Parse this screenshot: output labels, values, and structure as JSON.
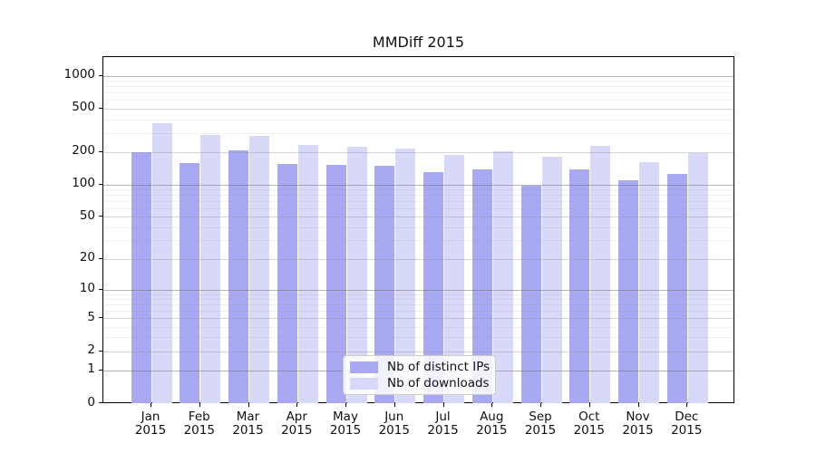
{
  "title": "MMDiff 2015",
  "chart_data": {
    "type": "bar",
    "title": "MMDiff 2015",
    "xlabel": "",
    "ylabel": "",
    "yscale": "symlog-log1p",
    "ylim": [
      0,
      1490
    ],
    "grid": true,
    "legend_position": "lower-center-inside",
    "categories": [
      "Jan 2015",
      "Feb 2015",
      "Mar 2015",
      "Apr 2015",
      "May 2015",
      "Jun 2015",
      "Jul 2015",
      "Aug 2015",
      "Sep 2015",
      "Oct 2015",
      "Nov 2015",
      "Dec 2015"
    ],
    "series": [
      {
        "name": "Nb of distinct IPs",
        "color": "#a8a8f3",
        "values": [
          197,
          158,
          206,
          155,
          153,
          150,
          130,
          137,
          97,
          137,
          110,
          126
        ]
      },
      {
        "name": "Nb of downloads",
        "color": "#d8d8f8",
        "values": [
          370,
          285,
          281,
          231,
          224,
          213,
          188,
          201,
          181,
          228,
          162,
          196
        ]
      }
    ],
    "y_ticks": [
      1000,
      500,
      200,
      100,
      50,
      20,
      10,
      5,
      2,
      1,
      0
    ],
    "y_minor_gridlines": [
      3,
      4,
      6,
      7,
      8,
      9,
      30,
      40,
      60,
      70,
      80,
      90,
      300,
      400,
      600,
      700,
      800,
      900
    ],
    "axis_color": "#000000",
    "text_color": "#111111"
  }
}
